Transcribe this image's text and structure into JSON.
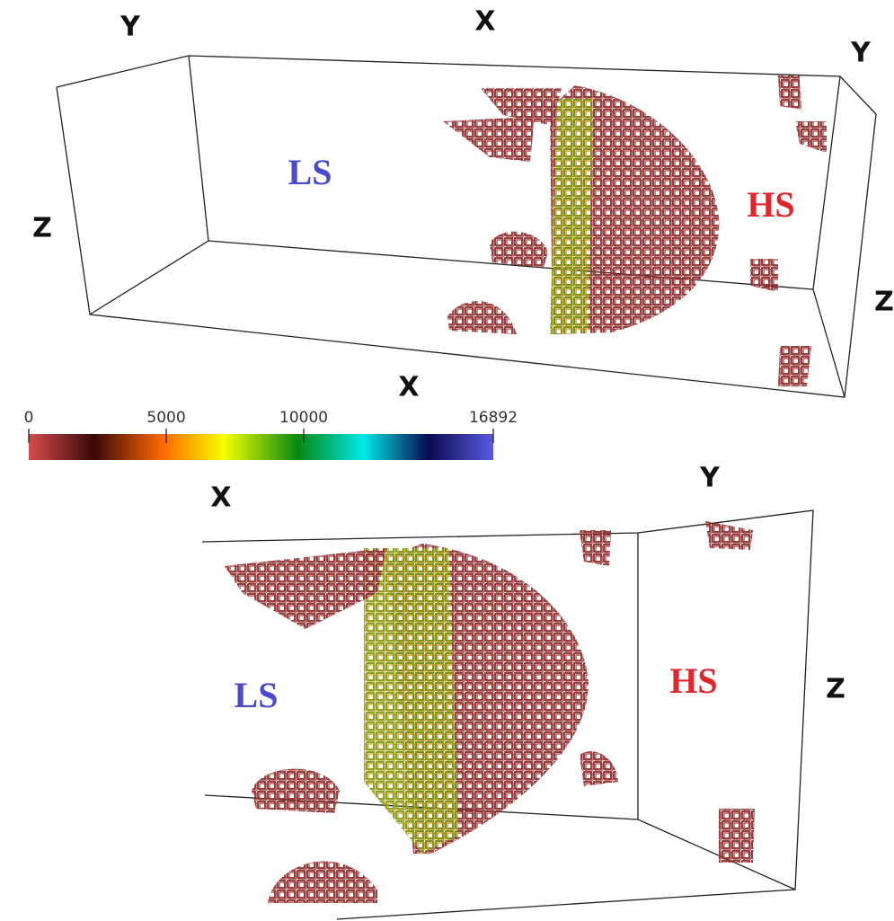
{
  "top_panel": {
    "axis_labels": [
      "Y",
      "X",
      "Y",
      "Z",
      "Z",
      "X"
    ],
    "regions": [
      "LS",
      "HS"
    ]
  },
  "colorbar": {
    "ticks": [
      0,
      5000,
      10000,
      16892
    ]
  },
  "bottom_panel": {
    "axis_labels": [
      "X",
      "Y",
      "Z"
    ],
    "regions": [
      "LS",
      "HS"
    ]
  }
}
